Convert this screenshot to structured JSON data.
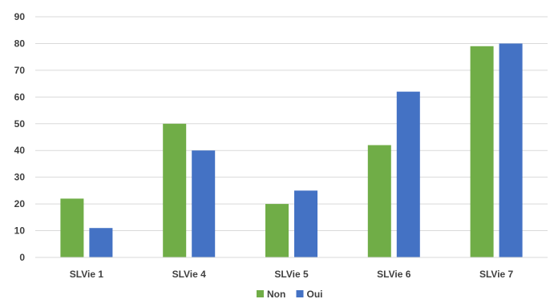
{
  "chart_data": {
    "type": "bar",
    "categories": [
      "SLVie 1",
      "SLVie 4",
      "SLVie 5",
      "SLVie 6",
      "SLVie 7"
    ],
    "series": [
      {
        "name": "Non",
        "color": "#70ad47",
        "values": [
          22,
          50,
          20,
          42,
          79
        ]
      },
      {
        "name": "Oui",
        "color": "#4472c4",
        "values": [
          11,
          40,
          25,
          62,
          80
        ]
      }
    ],
    "ylim": [
      0,
      90
    ],
    "yticks": [
      0,
      10,
      20,
      30,
      40,
      50,
      60,
      70,
      80,
      90
    ],
    "grid": true,
    "legend_position": "bottom",
    "title": "",
    "xlabel": "",
    "ylabel": ""
  }
}
